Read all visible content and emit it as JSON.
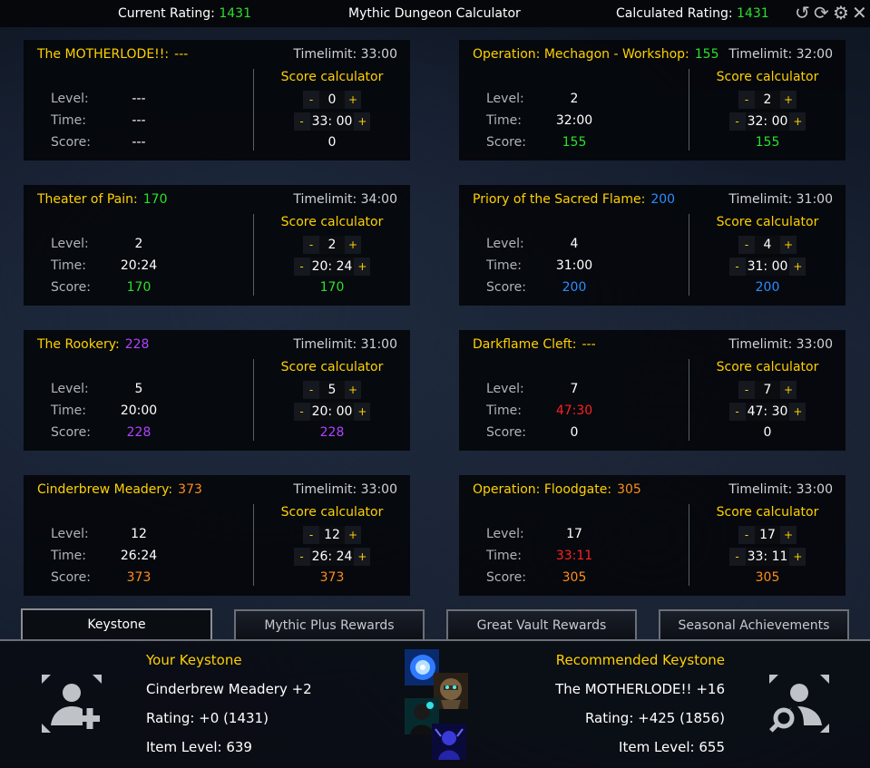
{
  "header": {
    "current_rating_label": "Current Rating:",
    "current_rating_value": "1431",
    "title": "Mythic Dungeon Calculator",
    "calculated_rating_label": "Calculated Rating:",
    "calculated_rating_value": "1431",
    "controls": [
      "undo-icon",
      "refresh-icon",
      "gear-icon",
      "close-icon"
    ]
  },
  "labels": {
    "timelimit": "Timelimit:",
    "score_calculator": "Score calculator",
    "level": "Level:",
    "time": "Time:",
    "score": "Score:",
    "minus": "-",
    "plus": "+"
  },
  "dungeons": [
    {
      "name": "The MOTHERLODE!!:",
      "score": "---",
      "score_color": "#ffd100",
      "timelimit": "33:00",
      "level": "---",
      "time": "---",
      "time_color": "#ffffff",
      "dscore": "---",
      "dscore_color": "#ffffff",
      "calc_level": "0",
      "calc_time": "33: 00",
      "calc_score": "0",
      "calc_score_color": "#ffffff"
    },
    {
      "name": "Operation: Mechagon - Workshop:",
      "score": "155",
      "score_color": "#2be02b",
      "timelimit": "32:00",
      "level": "2",
      "time": "32:00",
      "time_color": "#ffffff",
      "dscore": "155",
      "dscore_color": "#2be02b",
      "calc_level": "2",
      "calc_time": "32: 00",
      "calc_score": "155",
      "calc_score_color": "#2be02b"
    },
    {
      "name": "Theater of Pain:",
      "score": "170",
      "score_color": "#2be02b",
      "timelimit": "34:00",
      "level": "2",
      "time": "20:24",
      "time_color": "#ffffff",
      "dscore": "170",
      "dscore_color": "#2be02b",
      "calc_level": "2",
      "calc_time": "20: 24",
      "calc_score": "170",
      "calc_score_color": "#2be02b"
    },
    {
      "name": "Priory of the Sacred Flame:",
      "score": "200",
      "score_color": "#2b8cff",
      "timelimit": "31:00",
      "level": "4",
      "time": "31:00",
      "time_color": "#ffffff",
      "dscore": "200",
      "dscore_color": "#2b8cff",
      "calc_level": "4",
      "calc_time": "31: 00",
      "calc_score": "200",
      "calc_score_color": "#2b8cff"
    },
    {
      "name": "The Rookery:",
      "score": "228",
      "score_color": "#b042ff",
      "timelimit": "31:00",
      "level": "5",
      "time": "20:00",
      "time_color": "#ffffff",
      "dscore": "228",
      "dscore_color": "#b042ff",
      "calc_level": "5",
      "calc_time": "20: 00",
      "calc_score": "228",
      "calc_score_color": "#b042ff"
    },
    {
      "name": "Darkflame Cleft:",
      "score": "---",
      "score_color": "#ffd100",
      "timelimit": "33:00",
      "level": "7",
      "time": "47:30",
      "time_color": "#ff2020",
      "dscore": "0",
      "dscore_color": "#ffffff",
      "calc_level": "7",
      "calc_time": "47: 30",
      "calc_score": "0",
      "calc_score_color": "#ffffff"
    },
    {
      "name": "Cinderbrew Meadery:",
      "score": "373",
      "score_color": "#ff8c1a",
      "timelimit": "33:00",
      "level": "12",
      "time": "26:24",
      "time_color": "#ffffff",
      "dscore": "373",
      "dscore_color": "#ff8c1a",
      "calc_level": "12",
      "calc_time": "26: 24",
      "calc_score": "373",
      "calc_score_color": "#ff8c1a"
    },
    {
      "name": "Operation: Floodgate:",
      "score": "305",
      "score_color": "#ff8c1a",
      "timelimit": "33:00",
      "level": "17",
      "time": "33:11",
      "time_color": "#ff2020",
      "dscore": "305",
      "dscore_color": "#ff8c1a",
      "calc_level": "17",
      "calc_time": "33: 11",
      "calc_score": "305",
      "calc_score_color": "#ff8c1a"
    }
  ],
  "tabs": [
    {
      "label": "Keystone",
      "active": true
    },
    {
      "label": "Mythic Plus Rewards",
      "active": false
    },
    {
      "label": "Great Vault Rewards",
      "active": false
    },
    {
      "label": "Seasonal Achievements",
      "active": false
    }
  ],
  "keystone": {
    "your_title": "Your Keystone",
    "your_name": "Cinderbrew Meadery +2",
    "your_rating": "Rating: +0 (1431)",
    "your_ilvl": "Item Level: 639",
    "rec_title": "Recommended Keystone",
    "rec_name": "The MOTHERLODE!! +16",
    "rec_rating": "Rating: +425 (1856)",
    "rec_ilvl": "Item Level: 655"
  }
}
